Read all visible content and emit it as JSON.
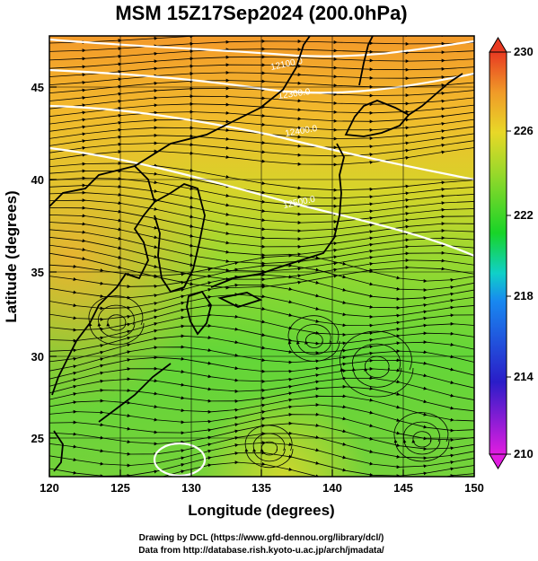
{
  "title": "MSM 15Z17Sep2024 (200.0hPa)",
  "xlabel": "Longitude (degrees)",
  "ylabel": "Latitude  (degrees)",
  "x_ticks": [
    "120",
    "125",
    "130",
    "135",
    "140",
    "145",
    "150"
  ],
  "y_ticks": [
    "25",
    "30",
    "35",
    "40",
    "45"
  ],
  "colorbar": {
    "ticks": [
      "210",
      "214",
      "218",
      "222",
      "226",
      "230"
    ],
    "colors": [
      "#d81be0",
      "#1a2fd0",
      "#10c8e8",
      "#18d020",
      "#f0e020",
      "#f04020"
    ]
  },
  "contour_labels": [
    "12100.0",
    "12300.0",
    "12400.0",
    "12500.0"
  ],
  "credits": [
    "Drawing by DCL (https://www.gfd-dennou.org/library/dcl/)",
    "Data from http://database.rish.kyoto-u.ac.jp/arch/jmadata/"
  ]
}
